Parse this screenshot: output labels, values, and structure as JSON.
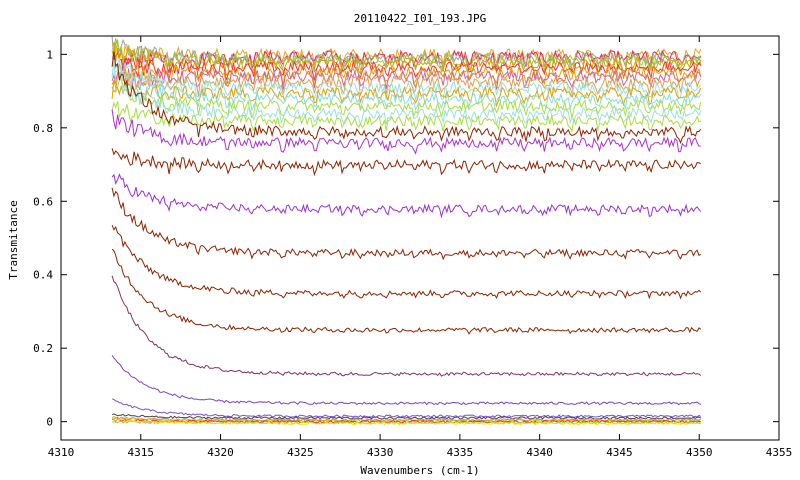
{
  "chart_data": {
    "type": "line",
    "title": "20110422_I01_193.JPG",
    "xlabel": "Wavenumbers (cm-1)",
    "ylabel": "Transmitance",
    "xlim": [
      4310,
      4355
    ],
    "ylim": [
      -0.05,
      1.05
    ],
    "x_ticks": [
      4310,
      4315,
      4320,
      4325,
      4330,
      4335,
      4340,
      4345,
      4350,
      4355
    ],
    "x_tick_labels": [
      "4310",
      "4315",
      "4320",
      "4325",
      "4330",
      "4335",
      "4340",
      "4345",
      "4350",
      "4355"
    ],
    "y_ticks": [
      0,
      0.2,
      0.4,
      0.6,
      0.8,
      1
    ],
    "y_tick_labels": [
      "0",
      "0.2",
      "0.4",
      "0.6",
      "0.8",
      "1"
    ],
    "grid": false,
    "x_range_of_data": [
      4313.2,
      4350.1
    ],
    "absorption_line_positions": [
      4316.8,
      4318.6,
      4320.4,
      4322.0,
      4323.9,
      4325.9,
      4327.7,
      4328.8,
      4330.4,
      4332.2,
      4333.9,
      4335.6,
      4337.3,
      4339.1,
      4340.3,
      4342.0,
      4343.7,
      4345.3,
      4346.9,
      4348.8
    ],
    "series": [
      {
        "color": "#e6a817",
        "plateau": 1.0,
        "edge": 1.0
      },
      {
        "color": "#e8206c",
        "plateau": 0.995,
        "edge": 0.97
      },
      {
        "color": "#a0a0a0",
        "plateau": 0.99,
        "edge": 1.02
      },
      {
        "color": "#9acd32",
        "plateau": 0.985,
        "edge": 1.02
      },
      {
        "color": "#d4a000",
        "plateau": 0.975,
        "edge": 1.0
      },
      {
        "color": "#ff3030",
        "plateau": 0.965,
        "edge": 0.96
      },
      {
        "color": "#e8a000",
        "plateau": 0.95,
        "edge": 0.95
      },
      {
        "color": "#cc6699",
        "plateau": 0.94,
        "edge": 0.93
      },
      {
        "color": "#e0a050",
        "plateau": 0.925,
        "edge": 0.92
      },
      {
        "color": "#99e0e0",
        "plateau": 0.91,
        "edge": 0.97
      },
      {
        "color": "#e0a000",
        "plateau": 0.895,
        "edge": 0.9
      },
      {
        "color": "#88dddd",
        "plateau": 0.88,
        "edge": 0.96
      },
      {
        "color": "#aadd44",
        "plateau": 0.86,
        "edge": 0.92
      },
      {
        "color": "#99e0e0",
        "plateau": 0.84,
        "edge": 0.94
      },
      {
        "color": "#aadd44",
        "plateau": 0.82,
        "edge": 0.85
      },
      {
        "color": "#8b2500",
        "plateau": 0.79,
        "edge": 0.99
      },
      {
        "color": "#aa33cc",
        "plateau": 0.76,
        "edge": 0.83
      },
      {
        "color": "#8b2500",
        "plateau": 0.7,
        "edge": 0.73
      },
      {
        "color": "#9933cc",
        "plateau": 0.58,
        "edge": 0.67
      },
      {
        "color": "#8b2500",
        "plateau": 0.46,
        "edge": 0.63
      },
      {
        "color": "#8b2500",
        "plateau": 0.35,
        "edge": 0.54
      },
      {
        "color": "#8b2500",
        "plateau": 0.25,
        "edge": 0.47
      },
      {
        "color": "#8b3060",
        "plateau": 0.13,
        "edge": 0.4
      },
      {
        "color": "#7744cc",
        "plateau": 0.05,
        "edge": 0.18
      },
      {
        "color": "#7755cc",
        "plateau": 0.015,
        "edge": 0.06
      },
      {
        "color": "#444444",
        "plateau": 0.01,
        "edge": 0.02
      },
      {
        "color": "#999999",
        "plateau": 0.005,
        "edge": 0.01
      },
      {
        "color": "#e6a817",
        "plateau": 0.003,
        "edge": 0.012
      },
      {
        "color": "#ff2222",
        "plateau": 0.0,
        "edge": 0.005
      },
      {
        "color": "#9acd32",
        "plateau": -0.003,
        "edge": 0.0
      },
      {
        "color": "#e8e800",
        "plateau": -0.005,
        "edge": 0.008
      }
    ]
  }
}
